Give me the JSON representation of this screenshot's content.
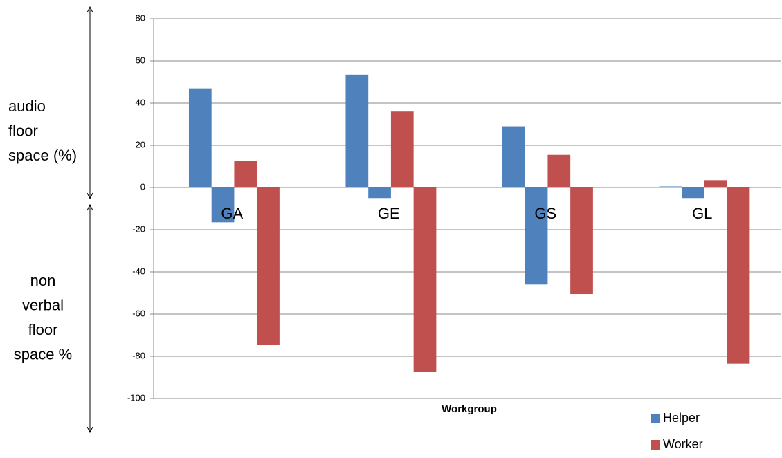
{
  "chart_data": {
    "type": "bar",
    "categories": [
      "GA",
      "GE",
      "GS",
      "GL"
    ],
    "series": [
      {
        "name": "Helper",
        "color": "#4f81bd",
        "audio_values": [
          47,
          53.5,
          29,
          0.5
        ],
        "non_verbal_values": [
          -16.5,
          -5,
          -46,
          -5
        ]
      },
      {
        "name": "Worker",
        "color": "#c0504d",
        "audio_values": [
          12.5,
          36,
          15.5,
          3.5
        ],
        "non_verbal_values": [
          -74.5,
          -87.5,
          -50.5,
          -83.5
        ]
      }
    ],
    "xlabel": "Workgroup",
    "ylim": [
      -100,
      80
    ],
    "yticks": [
      -100,
      -80,
      -60,
      -40,
      -20,
      0,
      20,
      40,
      60,
      80
    ],
    "grid": true,
    "legend": "bottom-right",
    "y_annotations": [
      [
        "audio",
        "floor",
        "space (%)"
      ],
      [
        "non",
        "verbal",
        "floor",
        "space %"
      ]
    ]
  }
}
